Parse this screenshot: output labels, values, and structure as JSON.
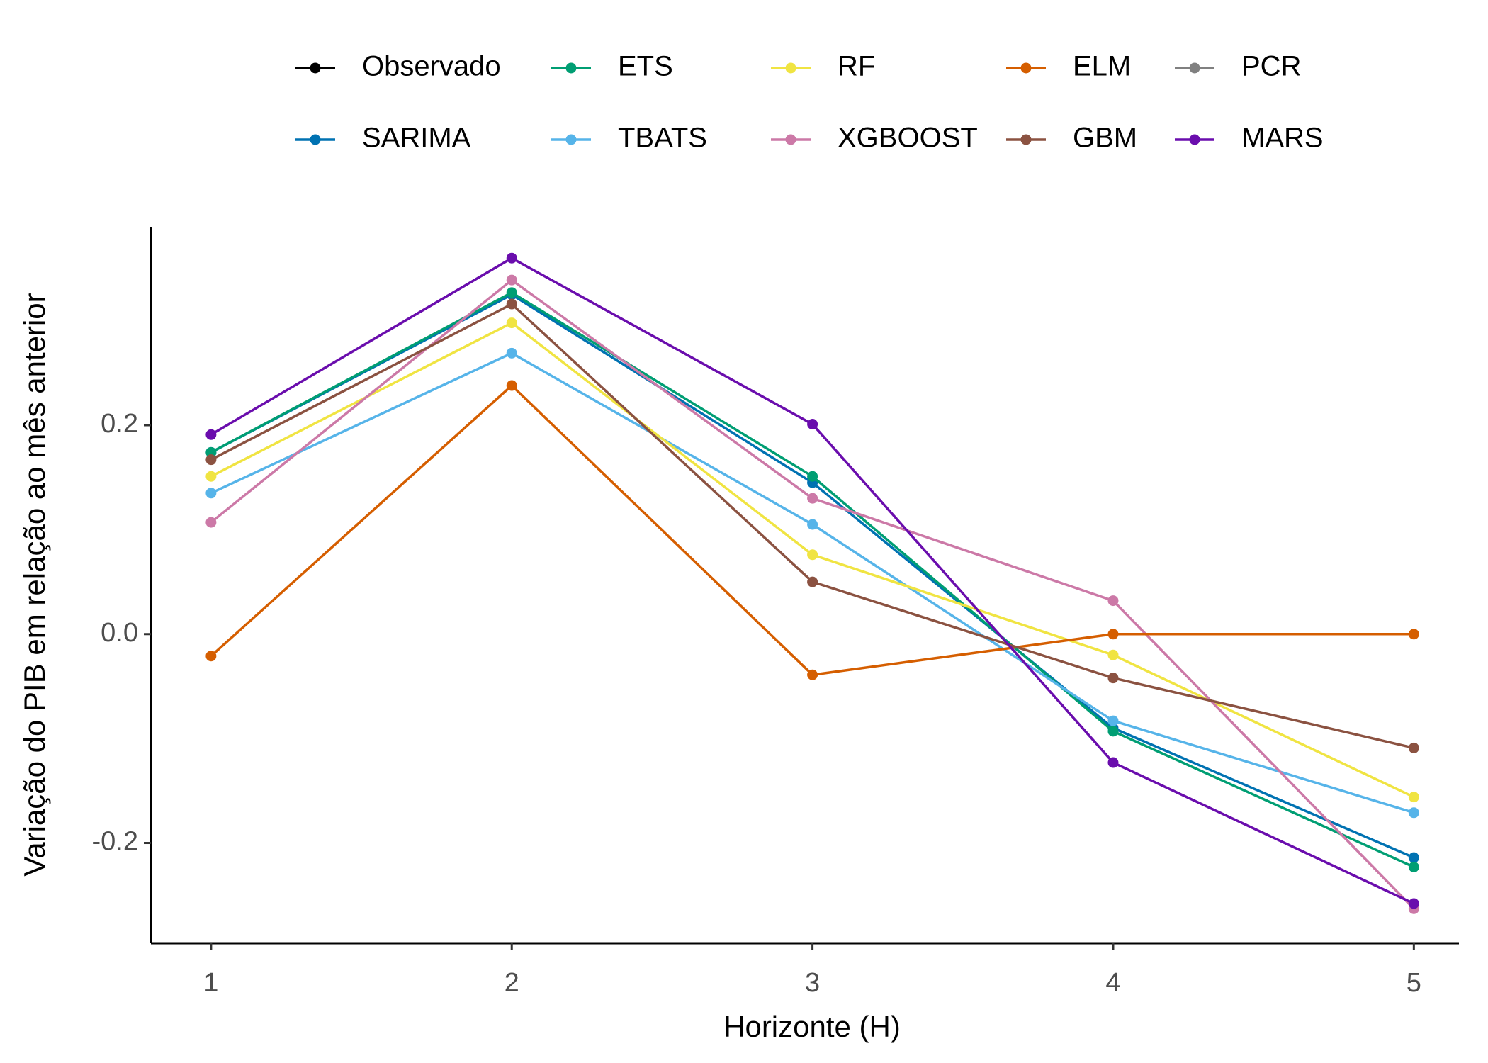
{
  "chart_data": {
    "type": "line",
    "x_label": "Horizonte (H)",
    "y_label": "Variação do PIB em relação ao mês anterior",
    "x": [
      1,
      2,
      3,
      4,
      5
    ],
    "xlim": [
      0.8,
      5.15
    ],
    "xticks": [
      1,
      2,
      3,
      4,
      5
    ],
    "ylim": [
      -0.296,
      0.39
    ],
    "yticks": [
      -0.2,
      {
        "value": 0,
        "label": "0.0"
      },
      0.2
    ],
    "grid": false,
    "legend": "top",
    "series": [
      {
        "name": "Observado",
        "color": "#000000",
        "values": [
          null,
          null,
          null,
          null,
          null
        ]
      },
      {
        "name": "SARIMA",
        "color": "#0072B2",
        "values": [
          0.174,
          0.325,
          0.145,
          -0.09,
          -0.214
        ]
      },
      {
        "name": "ETS",
        "color": "#009E73",
        "values": [
          0.174,
          0.327,
          0.151,
          -0.093,
          -0.223
        ]
      },
      {
        "name": "TBATS",
        "color": "#56B4E9",
        "values": [
          0.135,
          0.269,
          0.105,
          -0.083,
          -0.171
        ]
      },
      {
        "name": "RF",
        "color": "#F0E442",
        "values": [
          0.151,
          0.298,
          0.076,
          -0.02,
          -0.156
        ]
      },
      {
        "name": "XGBOOST",
        "color": "#CC79A7",
        "values": [
          0.107,
          0.339,
          0.13,
          0.032,
          -0.263
        ]
      },
      {
        "name": "ELM",
        "color": "#D55E00",
        "values": [
          -0.021,
          0.238,
          -0.039,
          0.0,
          0.0
        ]
      },
      {
        "name": "GBM",
        "color": "#8B5241",
        "values": [
          0.167,
          0.316,
          0.05,
          -0.042,
          -0.109
        ]
      },
      {
        "name": "PCR",
        "color": "#808080",
        "values": [
          null,
          null,
          null,
          null,
          null
        ]
      },
      {
        "name": "MARS",
        "color": "#6A0DAD",
        "values": [
          0.191,
          0.36,
          0.201,
          -0.123,
          -0.258
        ]
      }
    ]
  }
}
